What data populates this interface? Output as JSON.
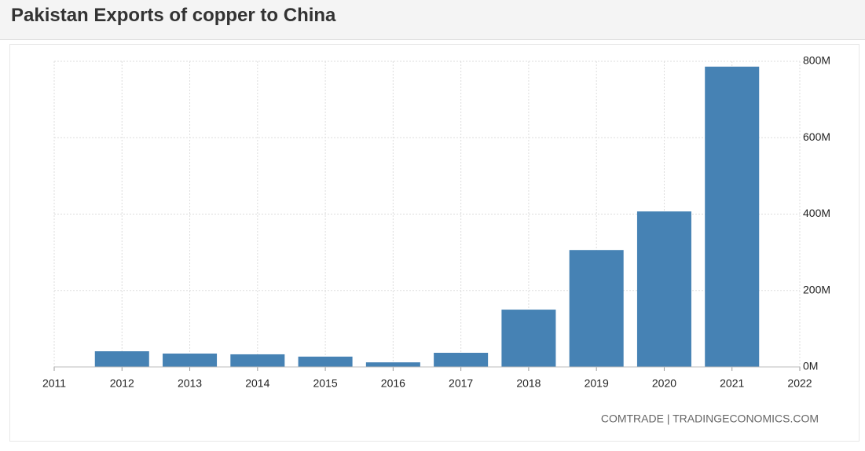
{
  "header": {
    "title": "Pakistan Exports of copper to China"
  },
  "chart_data": {
    "type": "bar",
    "x": [
      2012,
      2013,
      2014,
      2015,
      2016,
      2017,
      2018,
      2019,
      2020,
      2021
    ],
    "values": [
      41000000,
      35000000,
      33000000,
      27000000,
      12000000,
      37000000,
      150000000,
      306000000,
      407000000,
      786000000
    ],
    "color": "#4682b4",
    "xlim": [
      2011,
      2022
    ],
    "xticks": [
      2011,
      2012,
      2013,
      2014,
      2015,
      2016,
      2017,
      2018,
      2019,
      2020,
      2021,
      2022
    ],
    "ylim": [
      0,
      800000000
    ],
    "yticks": [
      {
        "value": 0,
        "label": "0M"
      },
      {
        "value": 200000000,
        "label": "200M"
      },
      {
        "value": 400000000,
        "label": "400M"
      },
      {
        "value": 600000000,
        "label": "600M"
      },
      {
        "value": 800000000,
        "label": "800M"
      }
    ],
    "grid": true,
    "source": "COMTRADE | TRADINGECONOMICS.COM"
  }
}
